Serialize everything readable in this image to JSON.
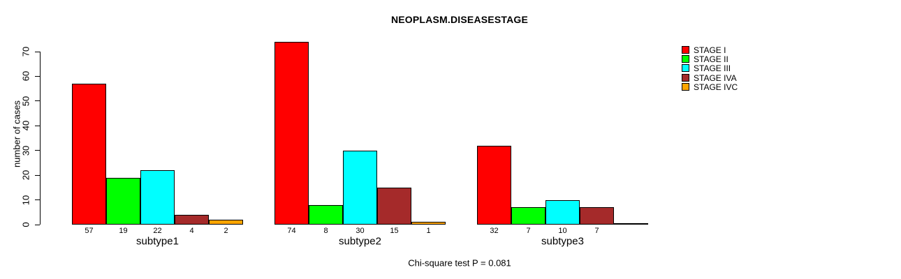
{
  "chart_data": {
    "type": "bar",
    "title": "NEOPLASM.DISEASESTAGE",
    "ylabel": "number of cases",
    "xlabel": "",
    "footer": "Chi-square test P = 0.081",
    "ylim": [
      0,
      70
    ],
    "yticks": [
      0,
      10,
      20,
      30,
      40,
      50,
      60,
      70
    ],
    "grid": false,
    "categories": [
      "subtype1",
      "subtype2",
      "subtype3"
    ],
    "series": [
      {
        "name": "STAGE I",
        "color": "#FF0000",
        "values": [
          57,
          74,
          32
        ]
      },
      {
        "name": "STAGE II",
        "color": "#00FF00",
        "values": [
          19,
          8,
          7
        ]
      },
      {
        "name": "STAGE III",
        "color": "#00FFFF",
        "values": [
          22,
          30,
          10
        ]
      },
      {
        "name": "STAGE IVA",
        "color": "#A52A2A",
        "values": [
          4,
          15,
          7
        ]
      },
      {
        "name": "STAGE IVC",
        "color": "#FFA500",
        "values": [
          2,
          1,
          0
        ]
      }
    ],
    "bar_value_labels": [
      [
        "57",
        "19",
        "22",
        "4",
        "2"
      ],
      [
        "74",
        "8",
        "30",
        "15",
        "1"
      ],
      [
        "32",
        "7",
        "10",
        "7",
        ""
      ]
    ],
    "legend": {
      "position": "right",
      "entries": [
        {
          "label": "STAGE I",
          "color": "#FF0000"
        },
        {
          "label": "STAGE II",
          "color": "#00FF00"
        },
        {
          "label": "STAGE III",
          "color": "#00FFFF"
        },
        {
          "label": "STAGE IVA",
          "color": "#A52A2A"
        },
        {
          "label": "STAGE IVC",
          "color": "#FFA500"
        }
      ]
    },
    "axis_color": "#000000"
  }
}
